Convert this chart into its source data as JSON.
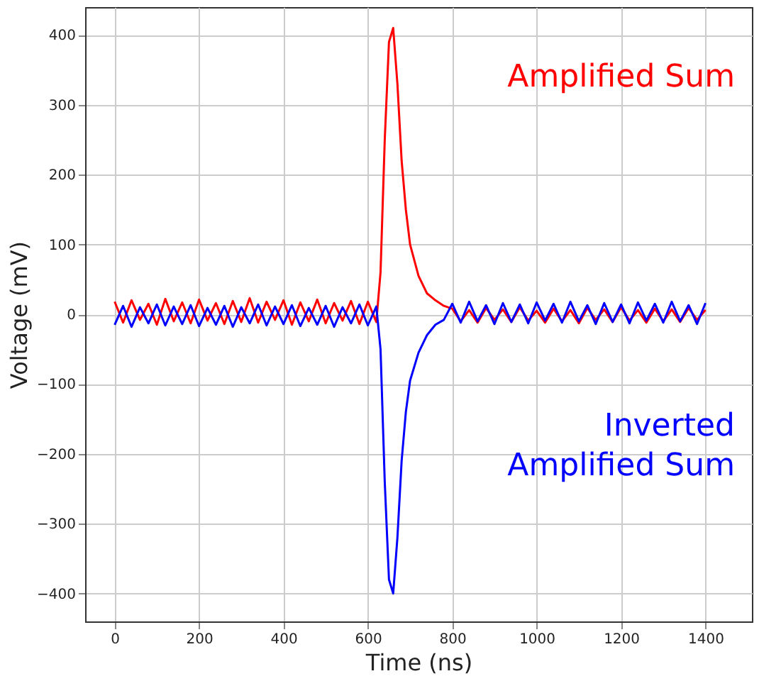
{
  "chart_data": {
    "type": "line",
    "xlabel": "Time (ns)",
    "ylabel": "Voltage (mV)",
    "x": [
      0,
      20,
      40,
      60,
      80,
      100,
      120,
      140,
      160,
      180,
      200,
      220,
      240,
      260,
      280,
      300,
      320,
      340,
      360,
      380,
      400,
      420,
      440,
      460,
      480,
      500,
      520,
      540,
      560,
      580,
      600,
      620,
      630,
      640,
      650,
      660,
      670,
      680,
      690,
      700,
      720,
      740,
      760,
      780,
      800,
      820,
      840,
      860,
      880,
      900,
      920,
      940,
      960,
      980,
      1000,
      1020,
      1040,
      1060,
      1080,
      1100,
      1120,
      1140,
      1160,
      1180,
      1200,
      1220,
      1240,
      1260,
      1280,
      1300,
      1320,
      1340,
      1360,
      1380,
      1400
    ],
    "series": [
      {
        "name": "Amplified Sum",
        "color": "#ff0000",
        "values": [
          18,
          -12,
          20,
          -8,
          15,
          -15,
          22,
          -10,
          17,
          -13,
          21,
          -9,
          16,
          -14,
          19,
          -11,
          23,
          -12,
          18,
          -8,
          20,
          -15,
          17,
          -10,
          21,
          -13,
          16,
          -9,
          19,
          -14,
          18,
          -11,
          60,
          250,
          390,
          410,
          330,
          220,
          150,
          100,
          55,
          30,
          20,
          12,
          8,
          -10,
          6,
          -12,
          9,
          -8,
          7,
          -11,
          10,
          -9,
          5,
          -12,
          8,
          -10,
          6,
          -13,
          9,
          -8,
          7,
          -11,
          10,
          -9,
          6,
          -12,
          8,
          -10,
          7,
          -11,
          9,
          -8,
          6
        ]
      },
      {
        "name": "Inverted Amplified Sum",
        "color": "#0000ff",
        "values": [
          -15,
          12,
          -18,
          10,
          -13,
          14,
          -16,
          11,
          -14,
          13,
          -17,
          9,
          -15,
          12,
          -18,
          10,
          -13,
          14,
          -16,
          11,
          -14,
          13,
          -17,
          9,
          -15,
          12,
          -18,
          10,
          -13,
          14,
          -16,
          11,
          -50,
          -240,
          -380,
          -400,
          -320,
          -210,
          -140,
          -95,
          -55,
          -30,
          -15,
          -8,
          15,
          -12,
          18,
          -10,
          13,
          -14,
          16,
          -11,
          14,
          -13,
          17,
          -9,
          15,
          -12,
          18,
          -10,
          13,
          -14,
          16,
          -11,
          14,
          -13,
          17,
          -9,
          15,
          -12,
          18,
          -10,
          13,
          -14,
          16
        ]
      }
    ],
    "xlim": [
      -70,
      1510
    ],
    "xticks": [
      0,
      200,
      400,
      600,
      800,
      1000,
      1200,
      1400
    ],
    "ylim": [
      -440,
      440
    ],
    "yticks": [
      -400,
      -300,
      -200,
      -100,
      0,
      100,
      200,
      300,
      400
    ],
    "grid": true,
    "marker": "none",
    "line_style": "solid"
  }
}
